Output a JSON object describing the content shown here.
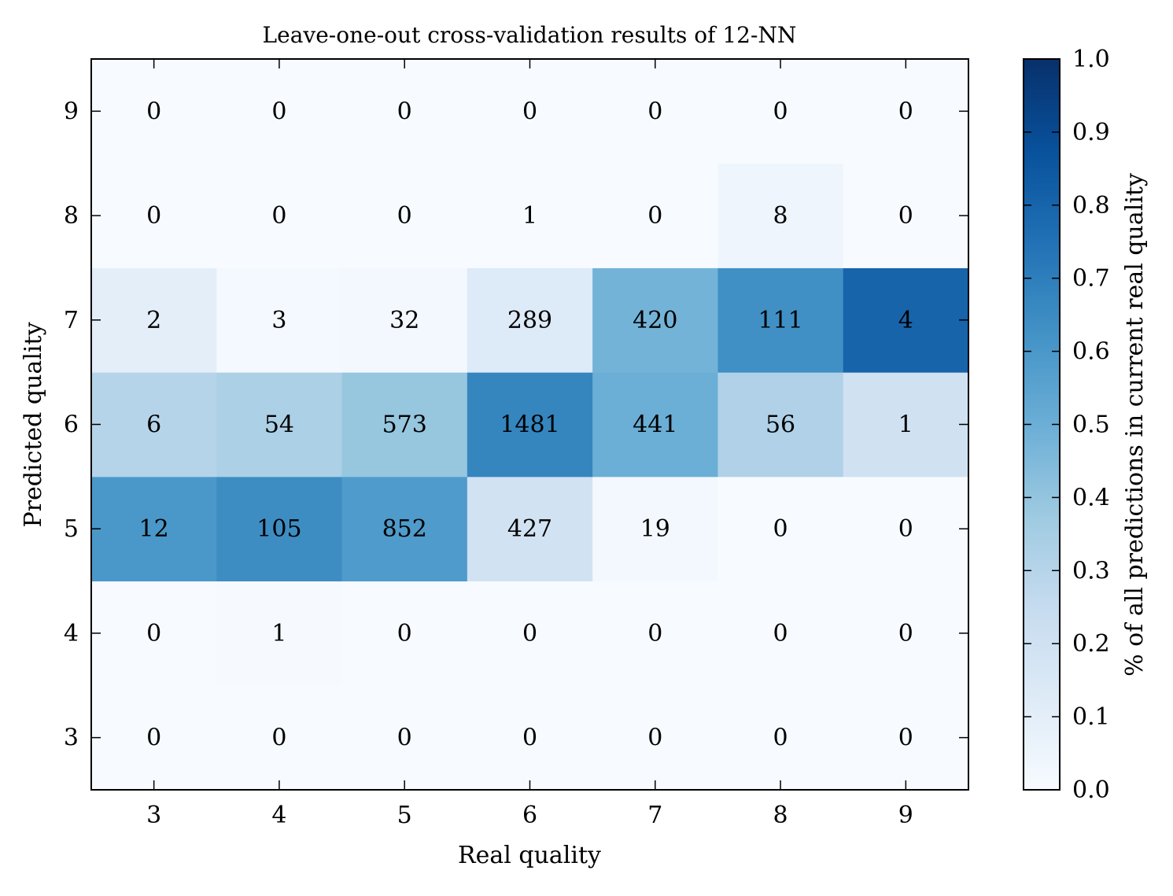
{
  "chart_data": {
    "type": "heatmap",
    "title": "Leave-one-out cross-validation results of 12-NN",
    "xlabel": "Real quality",
    "ylabel": "Predicted quality",
    "x_categories": [
      "3",
      "4",
      "5",
      "6",
      "7",
      "8",
      "9"
    ],
    "y_categories": [
      "3",
      "4",
      "5",
      "6",
      "7",
      "8",
      "9"
    ],
    "counts": [
      [
        0,
        0,
        0,
        0,
        0,
        0,
        0
      ],
      [
        0,
        1,
        0,
        0,
        0,
        0,
        0
      ],
      [
        12,
        105,
        852,
        427,
        19,
        0,
        0
      ],
      [
        6,
        54,
        573,
        1481,
        441,
        56,
        1
      ],
      [
        2,
        3,
        32,
        289,
        420,
        111,
        4
      ],
      [
        0,
        0,
        0,
        1,
        0,
        8,
        0
      ],
      [
        0,
        0,
        0,
        0,
        0,
        0,
        0
      ]
    ],
    "colorbar": {
      "label": "% of all predictions in current real quality",
      "range": [
        0.0,
        1.0
      ],
      "ticks": [
        "0.0",
        "0.1",
        "0.2",
        "0.3",
        "0.4",
        "0.5",
        "0.6",
        "0.7",
        "0.8",
        "0.9",
        "1.0"
      ],
      "colormap": "Blues",
      "color_low": "#f7fbff",
      "color_high": "#08306b"
    }
  }
}
